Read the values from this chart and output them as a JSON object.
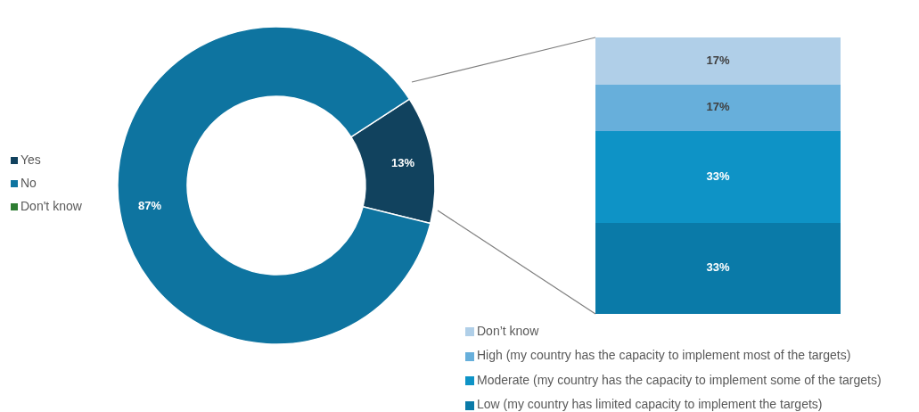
{
  "chart_data": [
    {
      "type": "donut",
      "categories": [
        "Yes",
        "No",
        "Don't know"
      ],
      "values": [
        13,
        87,
        0
      ],
      "colors": [
        "#11425e",
        "#0e74a0",
        "#2e7d32"
      ],
      "value_labels": [
        "13%",
        "87%",
        null
      ],
      "legend": "left"
    },
    {
      "type": "bar",
      "stacked": true,
      "categories": [
        null
      ],
      "legend": "bottom",
      "series": [
        {
          "name": "Low (my country has limited capacity to implement the targets)",
          "color": "#0a7aa8",
          "values": [
            33
          ],
          "value_labels": [
            "33%"
          ]
        },
        {
          "name": "Moderate (my country has the capacity to implement some of the targets)",
          "color": "#0e93c6",
          "values": [
            33
          ],
          "value_labels": [
            "33%"
          ]
        },
        {
          "name": "High (my country has the capacity to implement most of the targets)",
          "color": "#67afdb",
          "values": [
            17
          ],
          "value_labels": [
            "17%"
          ]
        },
        {
          "name": "Don’t know",
          "color": "#b0cfe8",
          "values": [
            17
          ],
          "value_labels": [
            "17%"
          ]
        }
      ]
    }
  ]
}
